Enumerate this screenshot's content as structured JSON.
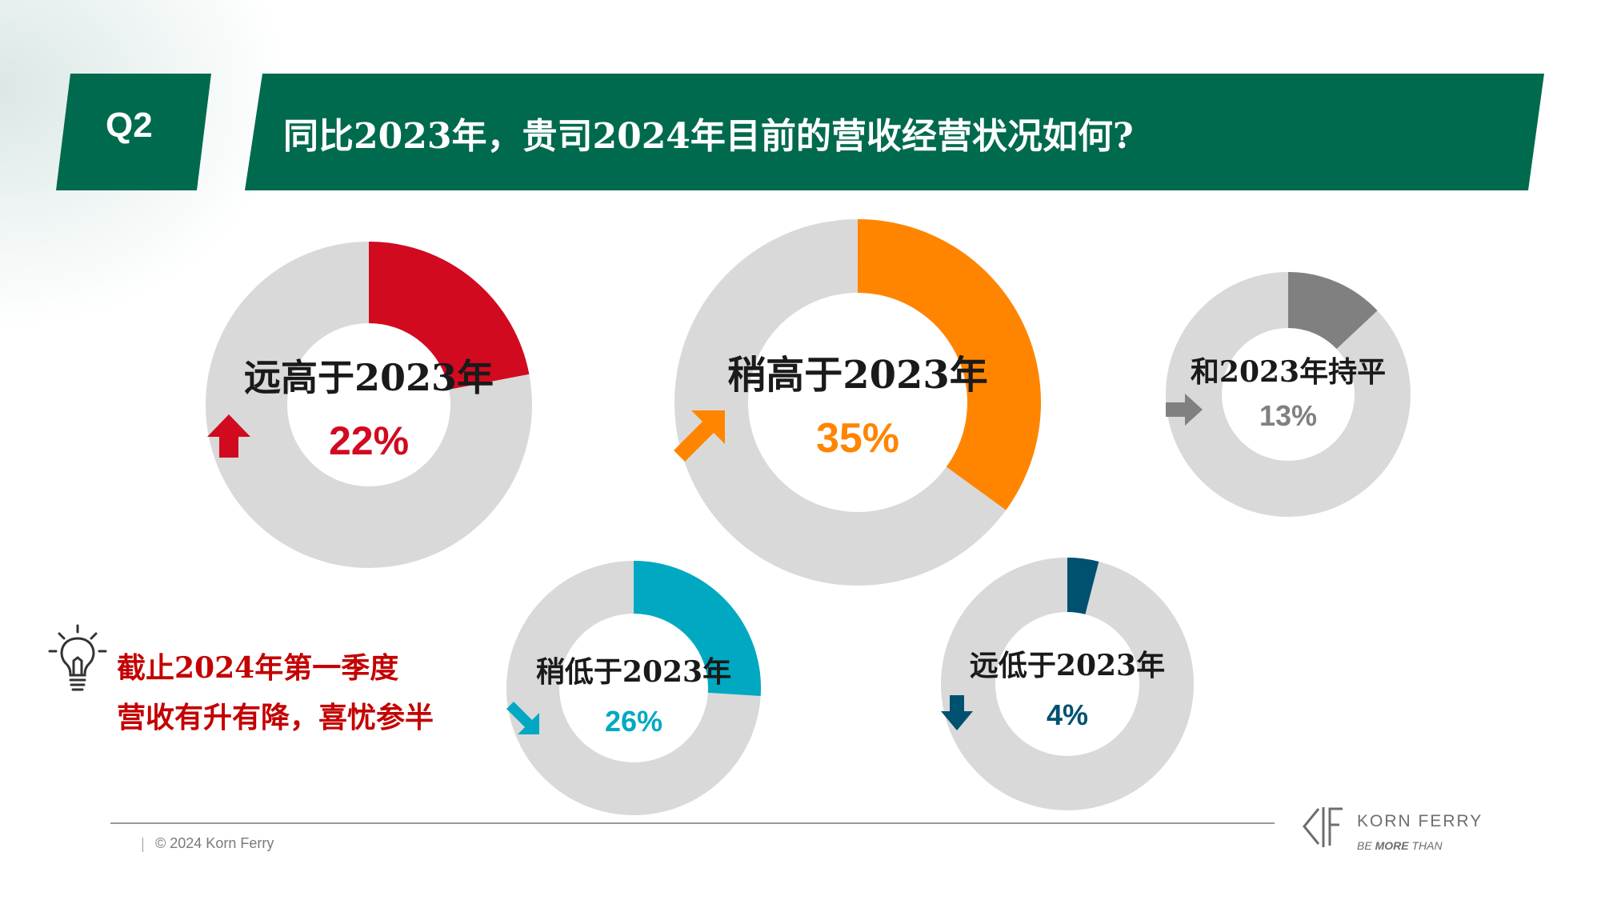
{
  "header": {
    "q_label": "Q2",
    "title": "同比2023年，贵司2024年目前的营收经营状况如何?"
  },
  "colors": {
    "banner_green": "#006a4e",
    "track_gray": "#d9d9d9",
    "red": "#d10a1f",
    "orange": "#ff8500",
    "gray": "#808080",
    "teal": "#00a9c1",
    "navy": "#005070"
  },
  "chart_data": {
    "type": "pie",
    "series": [
      {
        "label": "远高于2023年",
        "value": 22,
        "display": "22%",
        "color": "#d10a1f",
        "icon": "arrow-up-icon"
      },
      {
        "label": "稍高于2023年",
        "value": 35,
        "display": "35%",
        "color": "#ff8500",
        "icon": "arrow-up-right-icon"
      },
      {
        "label": "和2023年持平",
        "value": 13,
        "display": "13%",
        "color": "#808080",
        "icon": "arrow-right-icon"
      },
      {
        "label": "稍低于2023年",
        "value": 26,
        "display": "26%",
        "color": "#00a9c1",
        "icon": "arrow-down-right-icon"
      },
      {
        "label": "远低于2023年",
        "value": 4,
        "display": "4%",
        "color": "#005070",
        "icon": "arrow-down-icon"
      }
    ]
  },
  "takeaway": {
    "icon": "lightbulb-icon",
    "line1": "截止2024年第一季度",
    "line2": "营收有升有降，喜忧参半"
  },
  "footer": {
    "copyright": "© 2024 Korn Ferry",
    "logo_icon": "korn-ferry-logo-icon",
    "logo_name": "KORN FERRY",
    "tagline_prefix": "BE ",
    "tagline_bold": "MORE",
    "tagline_suffix": " THAN"
  }
}
